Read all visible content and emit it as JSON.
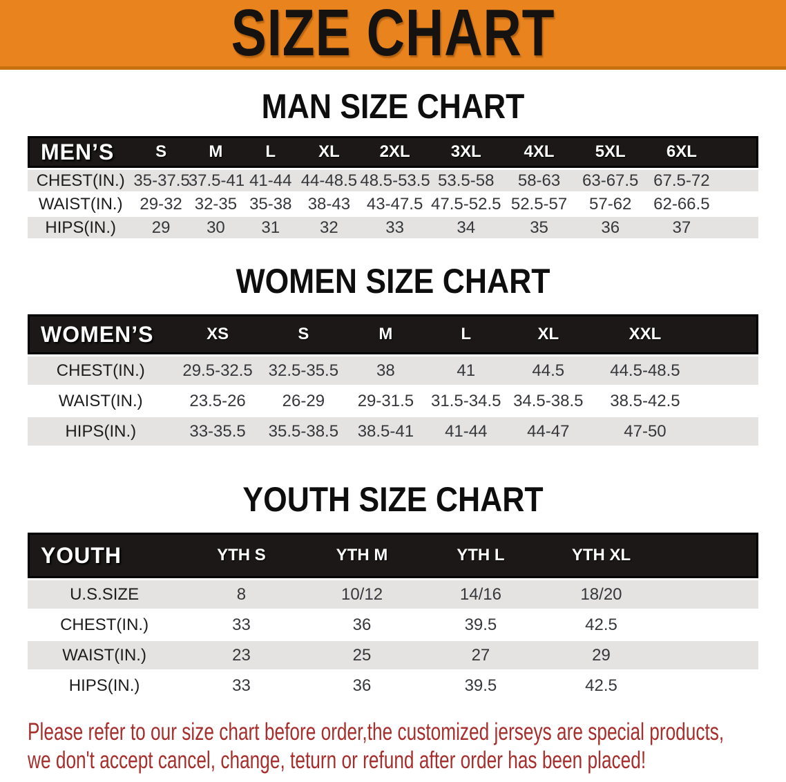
{
  "banner": {
    "title": "SIZE CHART"
  },
  "charts": [
    {
      "heading": "MAN SIZE CHART",
      "corner": "MEN’S",
      "columns": [
        "S",
        "M",
        "L",
        "XL",
        "2XL",
        "3XL",
        "4XL",
        "5XL",
        "6XL"
      ],
      "rows": [
        {
          "label": "CHEST(IN.)",
          "values": [
            "35-37.5",
            "37.5-41",
            "41-44",
            "44-48.5",
            "48.5-53.5",
            "53.5-58",
            "58-63",
            "63-67.5",
            "67.5-72"
          ]
        },
        {
          "label": "WAIST(IN.)",
          "values": [
            "29-32",
            "32-35",
            "35-38",
            "38-43",
            "43-47.5",
            "47.5-52.5",
            "52.5-57",
            "57-62",
            "62-66.5"
          ]
        },
        {
          "label": "HIPS(IN.)",
          "values": [
            "29",
            "30",
            "31",
            "32",
            "33",
            "34",
            "35",
            "36",
            "37"
          ]
        }
      ]
    },
    {
      "heading": "WOMEN SIZE CHART",
      "corner": "WOMEN’S",
      "columns": [
        "XS",
        "S",
        "M",
        "L",
        "XL",
        "XXL"
      ],
      "rows": [
        {
          "label": "CHEST(IN.)",
          "values": [
            "29.5-32.5",
            "32.5-35.5",
            "38",
            "41",
            "44.5",
            "44.5-48.5"
          ]
        },
        {
          "label": "WAIST(IN.)",
          "values": [
            "23.5-26",
            "26-29",
            "29-31.5",
            "31.5-34.5",
            "34.5-38.5",
            "38.5-42.5"
          ]
        },
        {
          "label": "HIPS(IN.)",
          "values": [
            "33-35.5",
            "35.5-38.5",
            "38.5-41",
            "41-44",
            "44-47",
            "47-50"
          ]
        }
      ]
    },
    {
      "heading": "YOUTH SIZE CHART",
      "corner": "YOUTH",
      "columns": [
        "YTH S",
        "YTH M",
        "YTH L",
        "YTH XL"
      ],
      "rows": [
        {
          "label": "U.S.SIZE",
          "values": [
            "8",
            "10/12",
            "14/16",
            "18/20"
          ]
        },
        {
          "label": "CHEST(IN.)",
          "values": [
            "33",
            "36",
            "39.5",
            "42.5"
          ]
        },
        {
          "label": "WAIST(IN.)",
          "values": [
            "23",
            "25",
            "27",
            "29"
          ]
        },
        {
          "label": "HIPS(IN.)",
          "values": [
            "33",
            "36",
            "39.5",
            "42.5"
          ]
        }
      ]
    }
  ],
  "disclaimer": {
    "line1": "Please refer to our size chart before order,the customized jerseys are special products,",
    "line2": "we don't accept cancel, change, teturn or refund after order has been placed!"
  },
  "colors": {
    "banner_orange": "#E8831D",
    "banner_orange_dark": "#C8700E",
    "title_black": "#151210",
    "header_black": "#1B1817",
    "row_gray": "#E4E3E1",
    "row_white": "#FFFFFF",
    "disclaimer_red": "#A62E2C"
  }
}
